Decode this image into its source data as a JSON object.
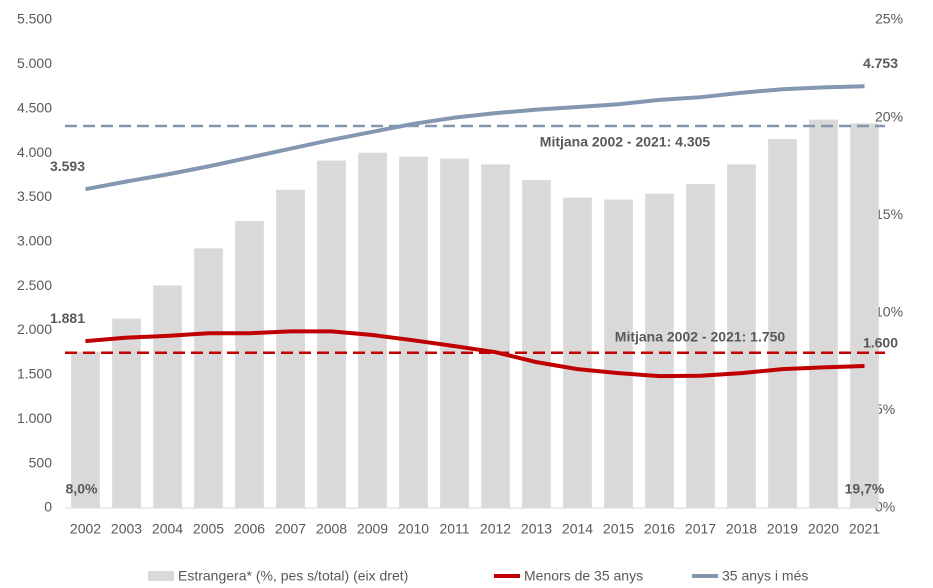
{
  "chart_data": {
    "type": "bar_line",
    "categories": [
      "2002",
      "2003",
      "2004",
      "2005",
      "2006",
      "2007",
      "2008",
      "2009",
      "2010",
      "2011",
      "2012",
      "2013",
      "2014",
      "2015",
      "2016",
      "2017",
      "2018",
      "2019",
      "2020",
      "2021"
    ],
    "series": [
      {
        "name": "Estrangera* (%, pes s/total) (eix dret)",
        "type": "bar",
        "axis": "y2",
        "color": "#d9d9d9",
        "values": [
          8.0,
          9.7,
          11.4,
          13.3,
          14.7,
          16.3,
          17.8,
          18.2,
          18.0,
          17.9,
          17.6,
          16.8,
          15.9,
          15.8,
          16.1,
          16.6,
          17.6,
          18.9,
          19.9,
          19.7
        ],
        "value_labels": [
          "8,0%",
          null,
          null,
          null,
          null,
          null,
          null,
          null,
          null,
          null,
          null,
          null,
          null,
          null,
          null,
          null,
          null,
          null,
          null,
          "19,7%"
        ],
        "label_color": "#404040"
      },
      {
        "name": "Menors de 35 anys",
        "type": "line",
        "color": "#c00000",
        "values": [
          1881,
          1920,
          1940,
          1970,
          1970,
          1990,
          1990,
          1950,
          1890,
          1824,
          1756,
          1644,
          1565,
          1520,
          1486,
          1490,
          1520,
          1565,
          1585,
          1600
        ],
        "value_labels": [
          "1.881",
          null,
          null,
          null,
          null,
          null,
          null,
          null,
          null,
          null,
          null,
          null,
          null,
          null,
          null,
          null,
          null,
          null,
          null,
          "1.600"
        ],
        "label_color": "#c00000"
      },
      {
        "name": "35 anys i més",
        "type": "line",
        "color": "#8497b0",
        "values": [
          3593,
          3680,
          3760,
          3850,
          3950,
          4050,
          4150,
          4240,
          4330,
          4400,
          4450,
          4490,
          4520,
          4550,
          4600,
          4630,
          4680,
          4720,
          4740,
          4753
        ],
        "value_labels": [
          "3.593",
          null,
          null,
          null,
          null,
          null,
          null,
          null,
          null,
          null,
          null,
          null,
          null,
          null,
          null,
          null,
          null,
          null,
          null,
          "4.753"
        ],
        "label_color": "#333f50"
      }
    ],
    "averages": [
      {
        "value": 4305,
        "label": "Mitjana 2002 - 2021: 4.305",
        "color": "#8497b0",
        "label_color": "#333f50"
      },
      {
        "value": 1750,
        "label": "Mitjana 2002 - 2021: 1.750",
        "color": "#c00000",
        "label_color": "#c00000"
      }
    ],
    "ylim": [
      0,
      5500
    ],
    "yticks": [
      0,
      500,
      {
        "value": 1000,
        "label": "1.000"
      },
      {
        "value": 1500,
        "label": "1.500"
      },
      {
        "value": 2000,
        "label": "2.000"
      },
      {
        "value": 2500,
        "label": "2.500"
      },
      {
        "value": 3000,
        "label": "3.000"
      },
      {
        "value": 3500,
        "label": "3.500"
      },
      {
        "value": 4000,
        "label": "4.000"
      },
      {
        "value": 4500,
        "label": "4.500"
      },
      {
        "value": 5000,
        "label": "5.000"
      },
      {
        "value": 5500,
        "label": "5.500"
      }
    ],
    "y2lim": [
      0,
      25
    ],
    "y2ticks": [
      {
        "value": 0,
        "label": "0%"
      },
      {
        "value": 5,
        "label": "5%"
      },
      {
        "value": 10,
        "label": "10%"
      },
      {
        "value": 15,
        "label": "15%"
      },
      {
        "value": 20,
        "label": "20%"
      },
      {
        "value": 25,
        "label": "25%"
      }
    ],
    "legend": "bottom"
  }
}
